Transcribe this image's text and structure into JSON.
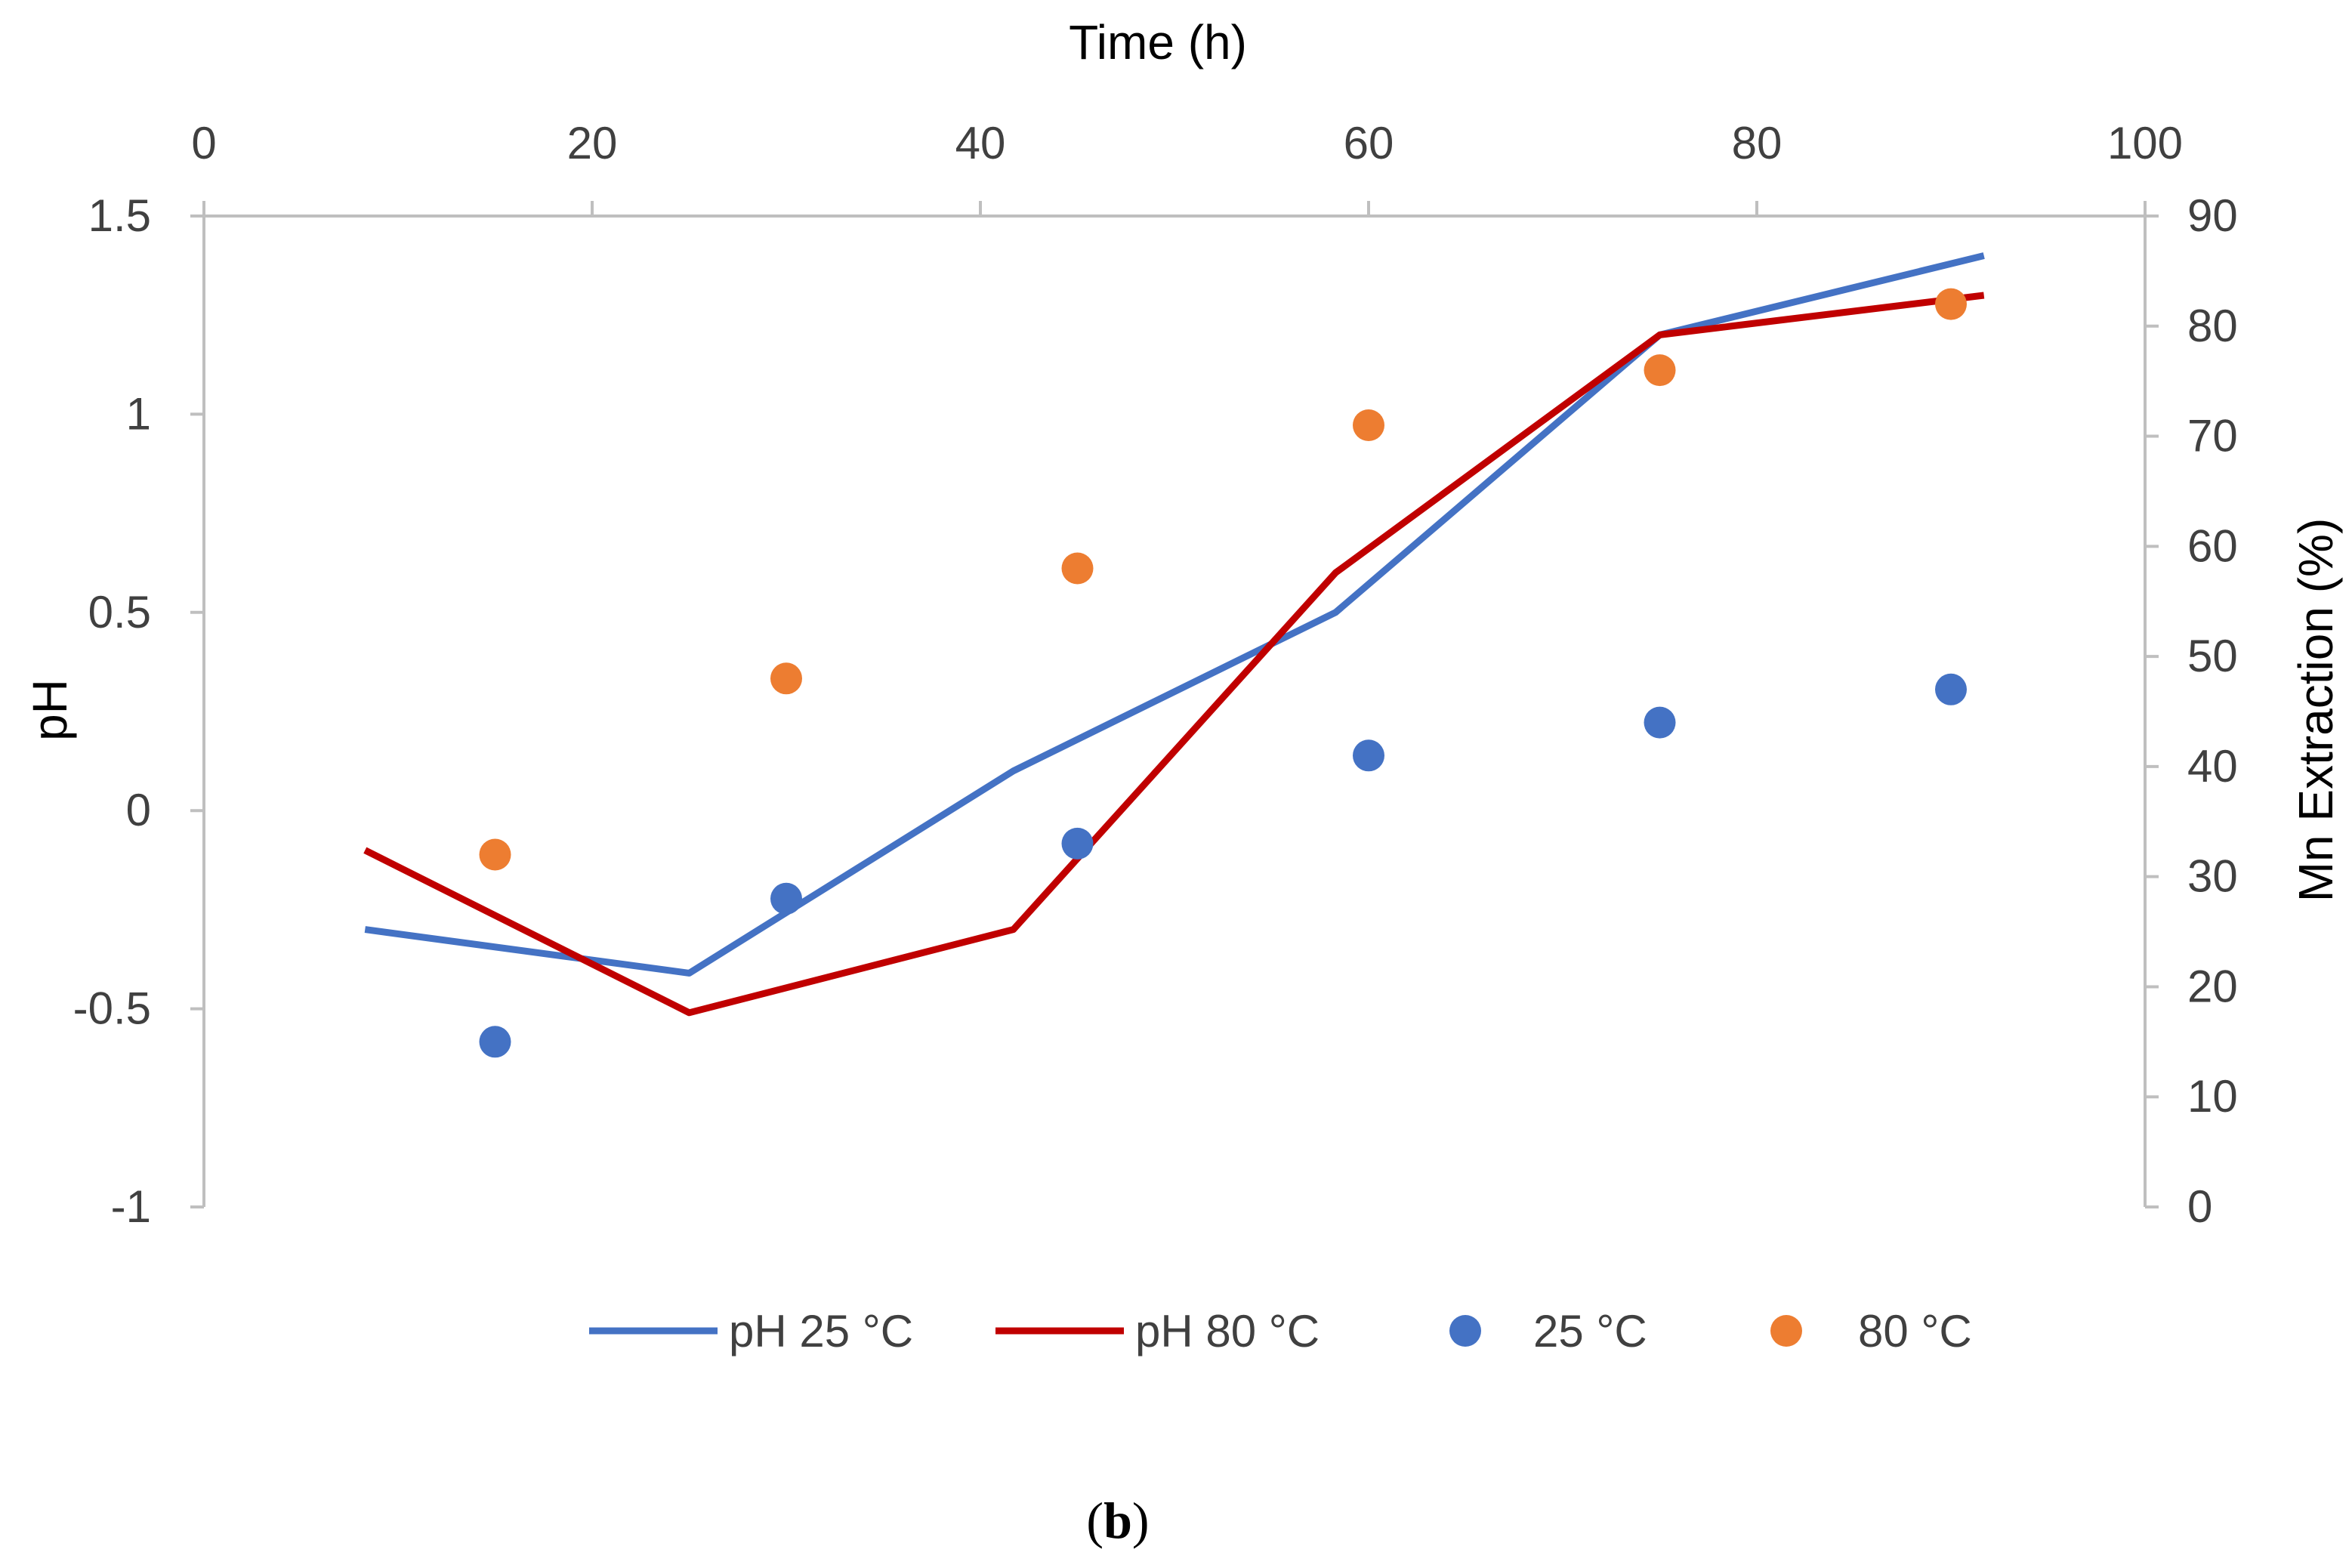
{
  "chart_data": {
    "type": "line+scatter",
    "x_axis": {
      "title": "Time (h)",
      "position": "top",
      "range": [
        0,
        100
      ],
      "ticks": [
        0,
        20,
        40,
        60,
        80,
        100
      ],
      "tick_labels": [
        "0",
        "20",
        "40",
        "60",
        "80",
        "100"
      ]
    },
    "y_left": {
      "title": "pH",
      "range": [
        -1,
        1.5
      ],
      "ticks": [
        -1,
        -0.5,
        0,
        0.5,
        1,
        1.5
      ],
      "tick_labels": [
        "-1",
        "-0.5",
        "0",
        "0.5",
        "1",
        "1.5"
      ]
    },
    "y_right": {
      "title": "Mn Extraction (%)",
      "range": [
        0,
        90
      ],
      "ticks": [
        0,
        10,
        20,
        30,
        40,
        50,
        60,
        70,
        80,
        90
      ],
      "tick_labels": [
        "0",
        "10",
        "20",
        "30",
        "40",
        "50",
        "60",
        "70",
        "80",
        "90"
      ]
    },
    "series": [
      {
        "name": "pH 25 °C",
        "kind": "line",
        "axis": "left",
        "color": "#4472C4",
        "points": [
          [
            8.3,
            -0.3
          ],
          [
            25,
            -0.41
          ],
          [
            41.7,
            0.1
          ],
          [
            58.3,
            0.5
          ],
          [
            75,
            1.2
          ],
          [
            91.7,
            1.4
          ]
        ]
      },
      {
        "name": "pH 80 °C",
        "kind": "line",
        "axis": "left",
        "color": "#C00000",
        "points": [
          [
            8.3,
            -0.1
          ],
          [
            25,
            -0.51
          ],
          [
            41.7,
            -0.3
          ],
          [
            58.3,
            0.6
          ],
          [
            75,
            1.2
          ],
          [
            91.7,
            1.3
          ]
        ]
      },
      {
        "name": "25 °C",
        "kind": "scatter",
        "axis": "right",
        "color": "#4472C4",
        "points": [
          [
            15,
            15
          ],
          [
            30,
            28
          ],
          [
            45,
            33
          ],
          [
            60,
            41
          ],
          [
            75,
            44
          ],
          [
            90,
            47
          ]
        ]
      },
      {
        "name": "80 °C",
        "kind": "scatter",
        "axis": "right",
        "color": "#ED7D31",
        "points": [
          [
            15,
            32
          ],
          [
            30,
            48
          ],
          [
            45,
            58
          ],
          [
            60,
            71
          ],
          [
            75,
            76
          ],
          [
            90,
            82
          ]
        ]
      }
    ],
    "legend": {
      "placement": "bottom",
      "entries": [
        "pH 25 °C",
        "pH 80 °C",
        "25 °C",
        "80 °C"
      ]
    },
    "grid": false
  },
  "caption": {
    "open": "(",
    "letter": "b",
    "close": ")"
  }
}
